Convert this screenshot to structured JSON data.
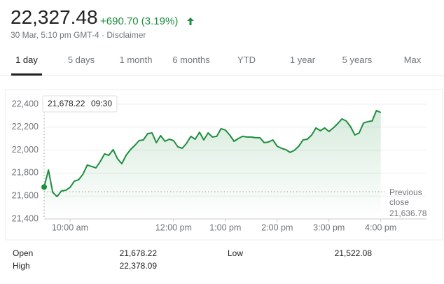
{
  "header": {
    "price": "22,327.48",
    "change": "+690.70 (3.19%)",
    "meta": "30 Mar, 5:10 pm GMT-4 · Disclaimer"
  },
  "tabs": [
    "1 day",
    "5 days",
    "1 month",
    "6 months",
    "YTD",
    "1 year",
    "5 years",
    "Max"
  ],
  "active_tab": 0,
  "chart_data": {
    "type": "line",
    "color": "#1e8e3e",
    "x": [
      "09:30",
      "09:35",
      "09:40",
      "09:45",
      "09:50",
      "09:55",
      "10:00",
      "10:05",
      "10:10",
      "10:15",
      "10:20",
      "10:25",
      "10:30",
      "10:35",
      "10:40",
      "10:45",
      "10:50",
      "10:55",
      "11:00",
      "11:05",
      "11:10",
      "11:15",
      "11:20",
      "11:25",
      "11:30",
      "11:35",
      "11:40",
      "11:45",
      "11:50",
      "11:55",
      "12:00",
      "12:05",
      "12:10",
      "12:15",
      "12:20",
      "12:25",
      "12:30",
      "12:35",
      "12:40",
      "12:45",
      "12:50",
      "12:55",
      "13:00",
      "13:05",
      "13:10",
      "13:15",
      "13:20",
      "13:25",
      "13:30",
      "13:35",
      "13:40",
      "13:45",
      "13:50",
      "13:55",
      "14:00",
      "14:05",
      "14:10",
      "14:15",
      "14:20",
      "14:25",
      "14:30",
      "14:35",
      "14:40",
      "14:45",
      "14:50",
      "14:55",
      "15:00",
      "15:05",
      "15:10",
      "15:15",
      "15:20",
      "15:25",
      "15:30",
      "15:35",
      "15:40",
      "15:45",
      "15:50",
      "15:55",
      "16:00"
    ],
    "values": [
      21678.22,
      21827,
      21632,
      21595,
      21644,
      21650,
      21675,
      21729,
      21742,
      21790,
      21870,
      21858,
      21845,
      21900,
      21967,
      21955,
      22004,
      21925,
      21882,
      21955,
      22004,
      22040,
      22083,
      22089,
      22144,
      22150,
      22065,
      22126,
      22077,
      22095,
      22083,
      22028,
      22016,
      22059,
      22120,
      22095,
      22156,
      22089,
      22150,
      22114,
      22120,
      22187,
      22175,
      22132,
      22077,
      22101,
      22120,
      22114,
      22114,
      22108,
      22108,
      22065,
      22071,
      22089,
      22034,
      22016,
      22004,
      21980,
      21998,
      22034,
      22089,
      22095,
      22132,
      22193,
      22169,
      22193,
      22162,
      22193,
      22230,
      22272,
      22254,
      22205,
      22132,
      22150,
      22236,
      22248,
      22254,
      22345,
      22327.48
    ],
    "xlim": [
      "09:30",
      "16:53"
    ],
    "xticks": [
      {
        "value": "10:00",
        "label": "10:00 am"
      },
      {
        "value": "12:00",
        "label": "12:00 pm"
      },
      {
        "value": "13:00",
        "label": "1:00 pm"
      },
      {
        "value": "14:00",
        "label": "2:00 pm"
      },
      {
        "value": "15:00",
        "label": "3:00 pm"
      },
      {
        "value": "16:00",
        "label": "4:00 pm"
      }
    ],
    "ylim": [
      21400,
      22400
    ],
    "yticks": [
      {
        "value": 21400,
        "label": "21,400"
      },
      {
        "value": 21600,
        "label": "21,600"
      },
      {
        "value": 21800,
        "label": "21,800"
      },
      {
        "value": 22000,
        "label": "22,000"
      },
      {
        "value": 22200,
        "label": "22,200"
      },
      {
        "value": 22400,
        "label": "22,400"
      }
    ],
    "grid": true,
    "previous_close": {
      "value": 21636.78,
      "label": "21,636.78"
    },
    "previous_close_text": "Previous close",
    "tooltip": {
      "label": "21,678.22"
    }
  },
  "stats": [
    {
      "label": "Open",
      "value": "21,678.22"
    },
    {
      "label": "High",
      "value": "22,378.09"
    },
    {
      "label": "Low",
      "value": "21,522.08"
    }
  ]
}
